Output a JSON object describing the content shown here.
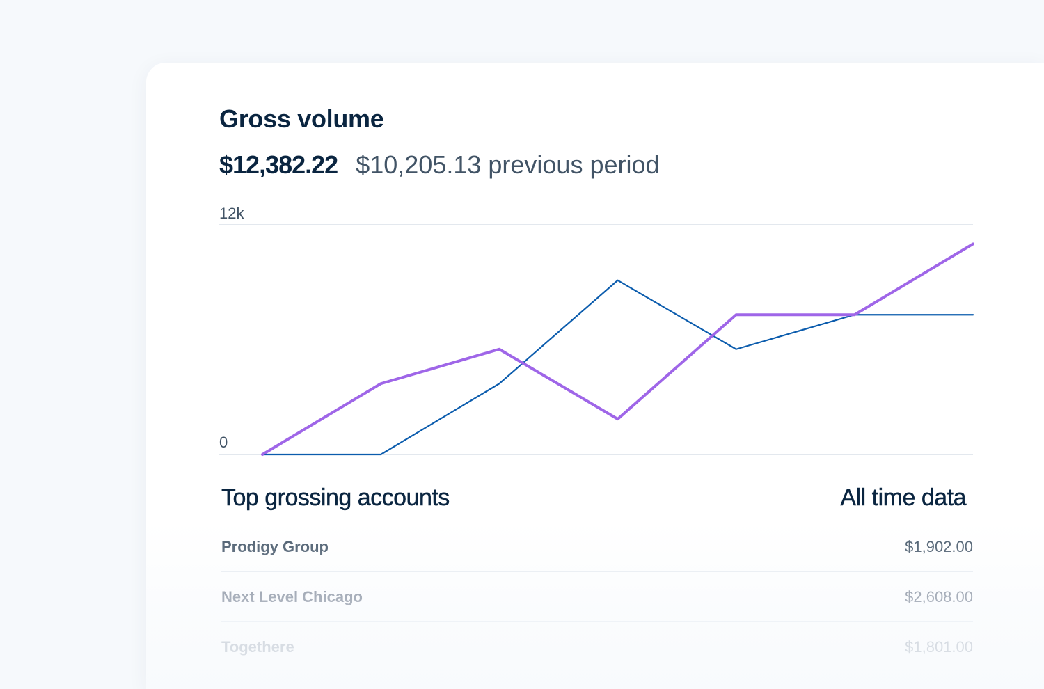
{
  "widget": {
    "title": "Gross volume",
    "current_amount": "$12,382.22",
    "previous_amount": "$10,205.13 previous period"
  },
  "chart_data": {
    "type": "line",
    "x": [
      0,
      1,
      2,
      3,
      4,
      5,
      6
    ],
    "ylim": [
      0,
      12000
    ],
    "y_tick_labels": [
      "0",
      "12k"
    ],
    "grid": true,
    "series": [
      {
        "color": "#0b5cad",
        "values": [
          0,
          0,
          3700,
          9100,
          5500,
          7300,
          7300
        ]
      },
      {
        "color": "#9f66e8",
        "values": [
          0,
          3700,
          5500,
          1850,
          7300,
          7300,
          11000
        ]
      }
    ]
  },
  "accounts": {
    "title": "Top grossing accounts",
    "range_label": "All time data",
    "rows": [
      {
        "name": "Prodigy Group",
        "amount": "$1,902.00",
        "color": "#425466"
      },
      {
        "name": "Next Level Chicago",
        "amount": "$2,608.00",
        "color": "#697386"
      },
      {
        "name": "Togethere",
        "amount": "$1,801.00",
        "color": "#a3acb9"
      }
    ]
  },
  "colors": {
    "page_background": "#f6f9fc",
    "card_background": "#ffffff",
    "heading": "#0a2540",
    "gridline": "#e3e8ee",
    "current_series": "#9f66e8",
    "previous_series": "#0b5cad"
  }
}
